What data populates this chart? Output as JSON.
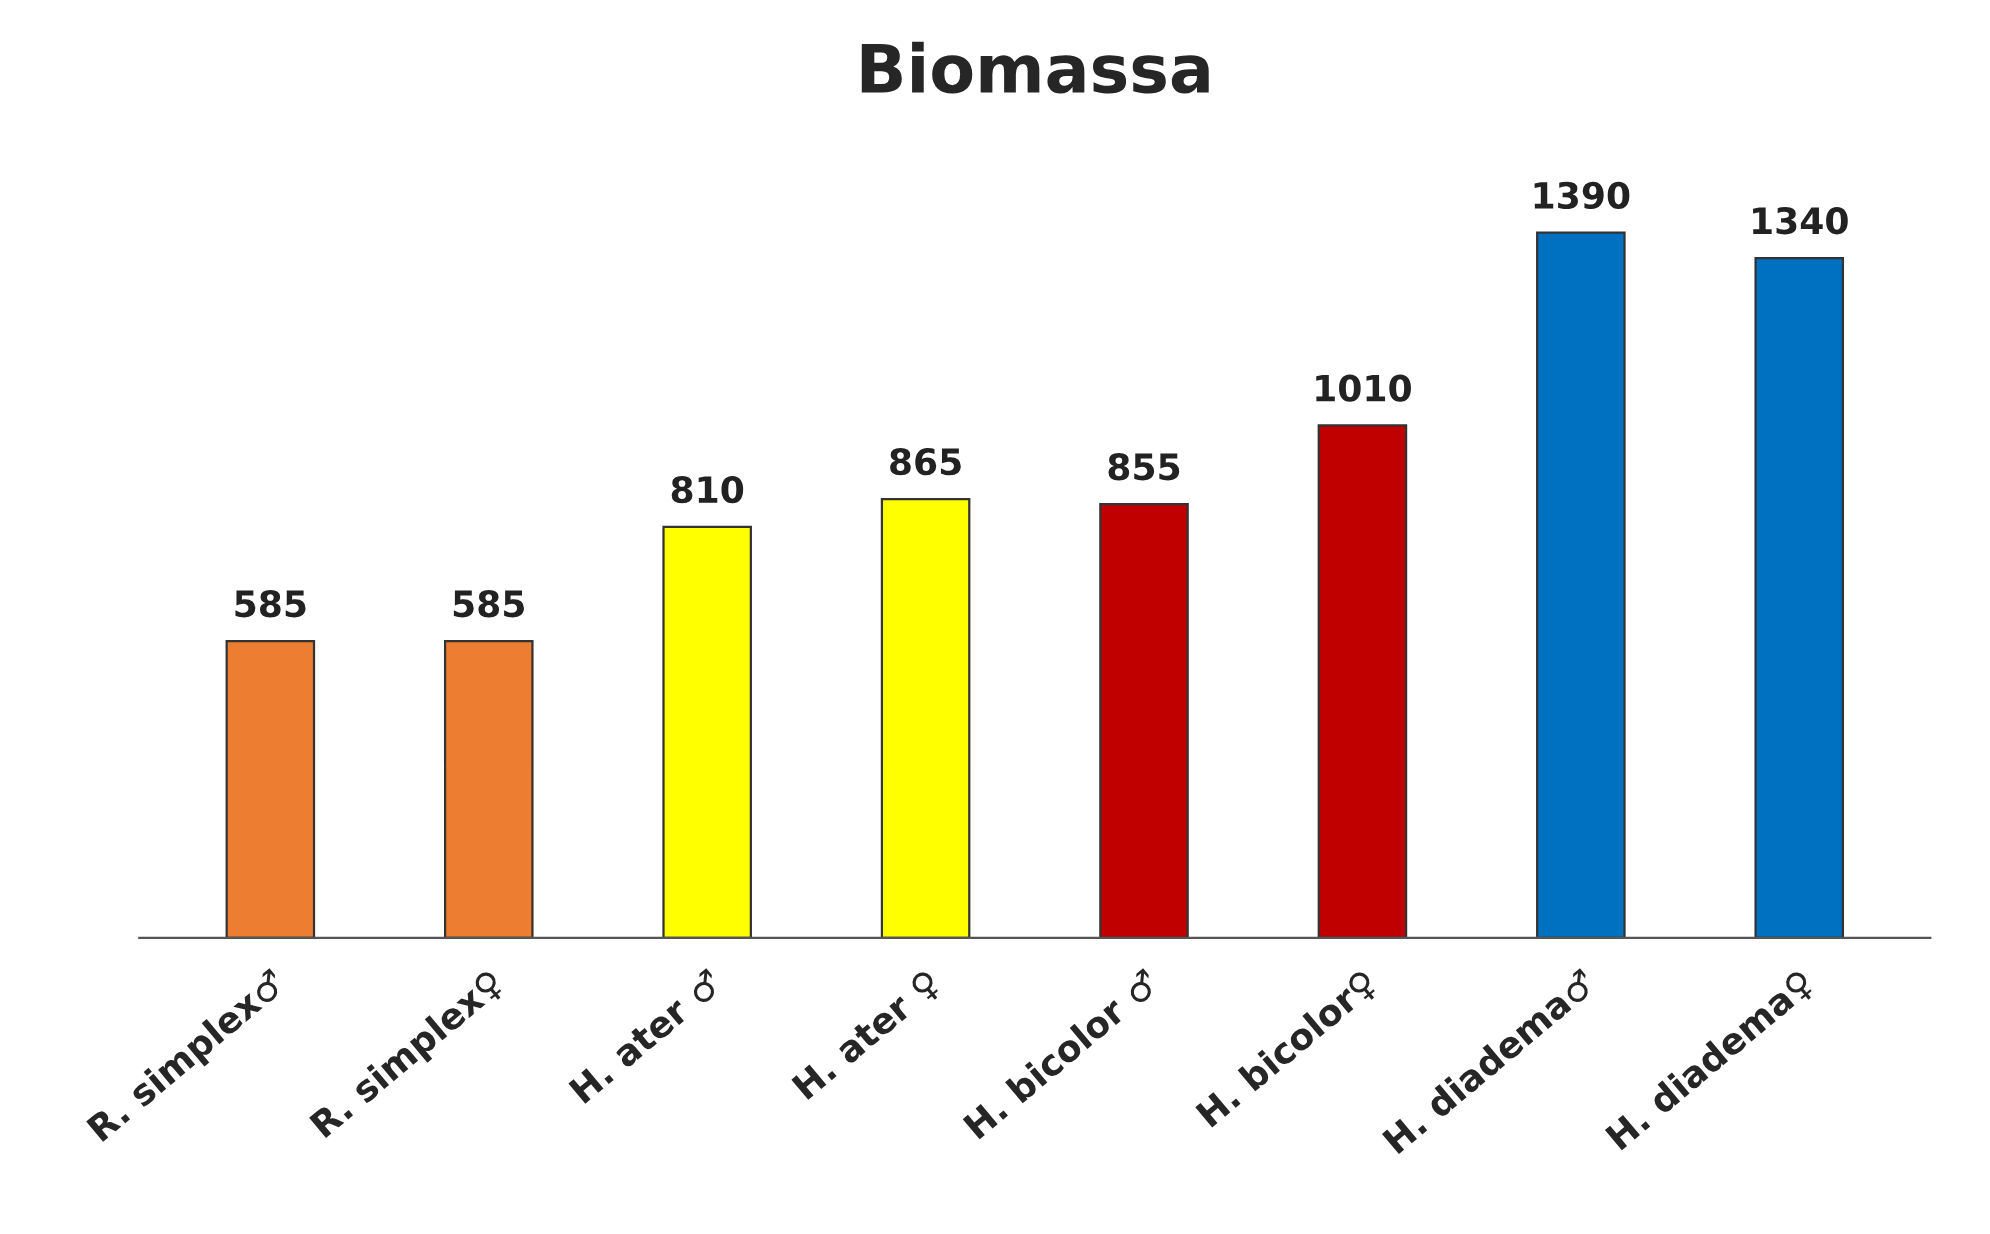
{
  "chart_data": {
    "type": "bar",
    "title": "Biomassa",
    "categories": [
      "R. simplex♂",
      "R. simplex♀",
      "H. ater ♂",
      "H. ater ♀",
      "H. bicolor ♂",
      "H. bicolor♀",
      "H. diadema♂",
      "H. diadema♀"
    ],
    "values": [
      585,
      585,
      810,
      865,
      855,
      1010,
      1390,
      1340
    ],
    "colors": [
      "#ed7d31",
      "#ed7d31",
      "#ffff00",
      "#ffff00",
      "#c00000",
      "#c00000",
      "#0070c0",
      "#0070c0"
    ],
    "data_labels": true,
    "grid": false,
    "legend": false
  }
}
